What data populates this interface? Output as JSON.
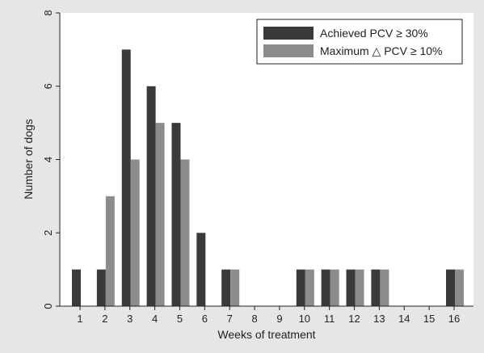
{
  "chart_data": {
    "type": "bar",
    "xlabel": "Weeks of treatment",
    "ylabel": "Number of dogs",
    "ylim": [
      0,
      8
    ],
    "yticks": [
      0,
      2,
      4,
      6,
      8
    ],
    "categories": [
      "1",
      "2",
      "3",
      "4",
      "5",
      "6",
      "7",
      "8",
      "9",
      "10",
      "11",
      "12",
      "13",
      "14",
      "15",
      "16"
    ],
    "series": [
      {
        "name": "Achieved PCV ≥ 30%",
        "color": "#3a3a3a",
        "values": [
          1,
          1,
          7,
          6,
          5,
          2,
          1,
          0,
          0,
          1,
          1,
          1,
          1,
          0,
          0,
          1
        ]
      },
      {
        "name": "Maximum △ PCV ≥ 10%",
        "color": "#8c8c8c",
        "values": [
          0,
          3,
          4,
          5,
          4,
          0,
          1,
          0,
          0,
          1,
          1,
          1,
          1,
          0,
          0,
          1
        ]
      }
    ],
    "legend_position": "top-right",
    "grid": false
  }
}
